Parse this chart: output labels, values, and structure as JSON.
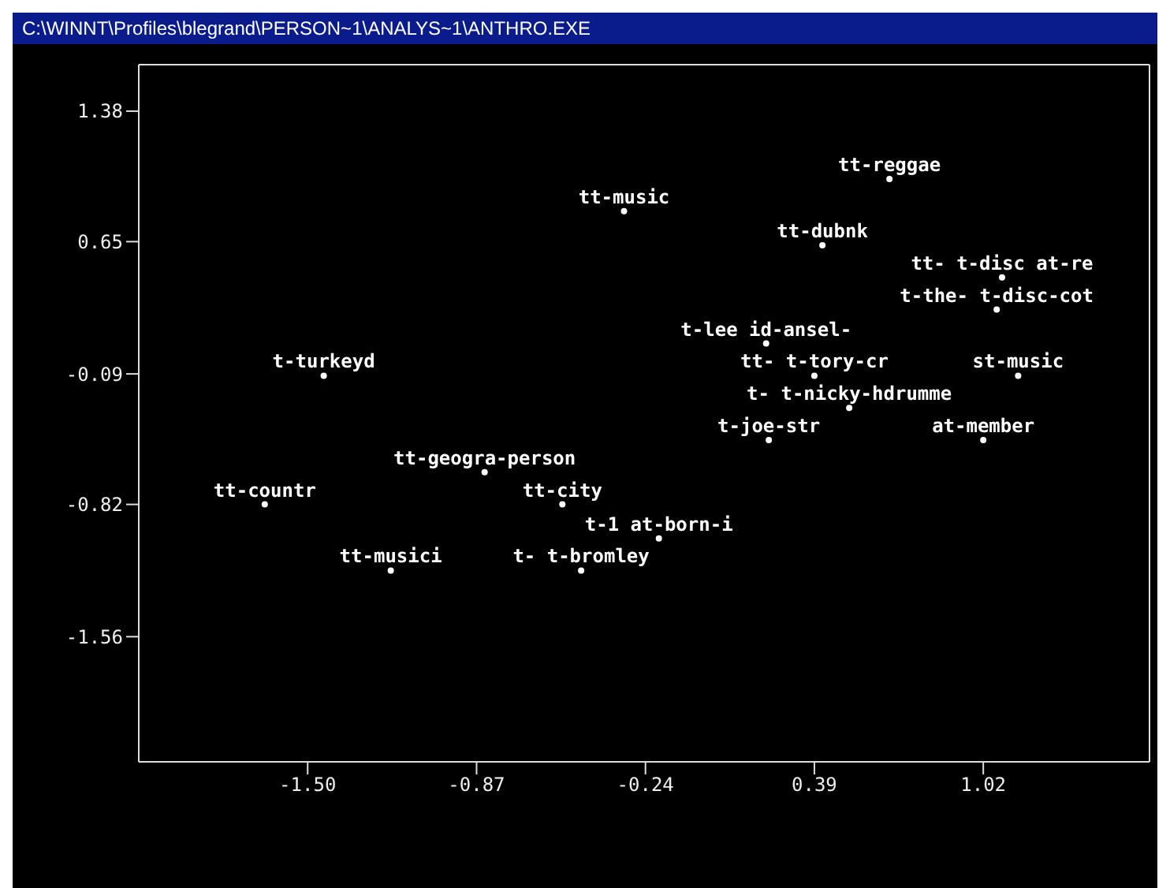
{
  "chart_data": {
    "type": "scatter",
    "title": "C:\\WINNT\\Profiles\\blegrand\\PERSON~1\\ANALYS~1\\ANTHRO.EXE",
    "marker": "circle",
    "grid": false,
    "legend": false,
    "xlim": [
      -2.13,
      1.64
    ],
    "xticks": [
      {
        "value": -1.5,
        "label": "-1.50"
      },
      {
        "value": -0.87,
        "label": "-0.87"
      },
      {
        "value": -0.24,
        "label": "-0.24"
      },
      {
        "value": 0.39,
        "label": "0.39"
      },
      {
        "value": 1.02,
        "label": "1.02"
      }
    ],
    "ylim": [
      -2.26,
      1.64
    ],
    "yticks": [
      {
        "value": 1.38,
        "label": "1.38"
      },
      {
        "value": 0.65,
        "label": "0.65"
      },
      {
        "value": -0.09,
        "label": "-0.09"
      },
      {
        "value": -0.82,
        "label": "-0.82"
      },
      {
        "value": -1.56,
        "label": "-1.56"
      }
    ],
    "series": [
      {
        "name": "tt-reggae",
        "color": "#ffffff",
        "x": [
          0.67
        ],
        "values": [
          1.0
        ]
      },
      {
        "name": "tt-music",
        "color": "#ffffff",
        "x": [
          -0.32
        ],
        "values": [
          0.82
        ]
      },
      {
        "name": "tt-dubnk",
        "color": "#ffffff",
        "x": [
          0.42
        ],
        "values": [
          0.63
        ]
      },
      {
        "name": "tt- t-disc at-re",
        "color": "#ffffff",
        "x": [
          1.09
        ],
        "values": [
          0.45
        ]
      },
      {
        "name": "t-the- t-disc-cot",
        "color": "#ffffff",
        "x": [
          1.07
        ],
        "values": [
          0.27
        ]
      },
      {
        "name": "t-lee id-ansel-",
        "color": "#ffffff",
        "x": [
          0.21
        ],
        "values": [
          0.08
        ]
      },
      {
        "name": "tt- t-tory-cr",
        "color": "#ffffff",
        "x": [
          0.39
        ],
        "values": [
          -0.1
        ]
      },
      {
        "name": "st-music",
        "color": "#ffffff",
        "x": [
          1.15
        ],
        "values": [
          -0.1
        ]
      },
      {
        "name": "t- t-nicky-hdrumme",
        "color": "#ffffff",
        "x": [
          0.52
        ],
        "values": [
          -0.28
        ]
      },
      {
        "name": "t-joe-str",
        "color": "#ffffff",
        "x": [
          0.22
        ],
        "values": [
          -0.46
        ]
      },
      {
        "name": "at-member",
        "color": "#ffffff",
        "x": [
          1.02
        ],
        "values": [
          -0.46
        ]
      },
      {
        "name": "t-turkeyd",
        "color": "#ffffff",
        "x": [
          -1.44
        ],
        "values": [
          -0.1
        ]
      },
      {
        "name": "tt-geogra-person",
        "color": "#ffffff",
        "x": [
          -0.84
        ],
        "values": [
          -0.64
        ]
      },
      {
        "name": "tt-countr",
        "color": "#ffffff",
        "x": [
          -1.66
        ],
        "values": [
          -0.82
        ]
      },
      {
        "name": "tt-city",
        "color": "#ffffff",
        "x": [
          -0.55
        ],
        "values": [
          -0.82
        ]
      },
      {
        "name": "t-1 at-born-i",
        "color": "#ffffff",
        "x": [
          -0.19
        ],
        "values": [
          -1.01
        ]
      },
      {
        "name": "tt-musici",
        "color": "#ffffff",
        "x": [
          -1.19
        ],
        "values": [
          -1.19
        ]
      },
      {
        "name": "t- t-bromley",
        "color": "#ffffff",
        "x": [
          -0.48
        ],
        "values": [
          -1.19
        ]
      }
    ]
  }
}
